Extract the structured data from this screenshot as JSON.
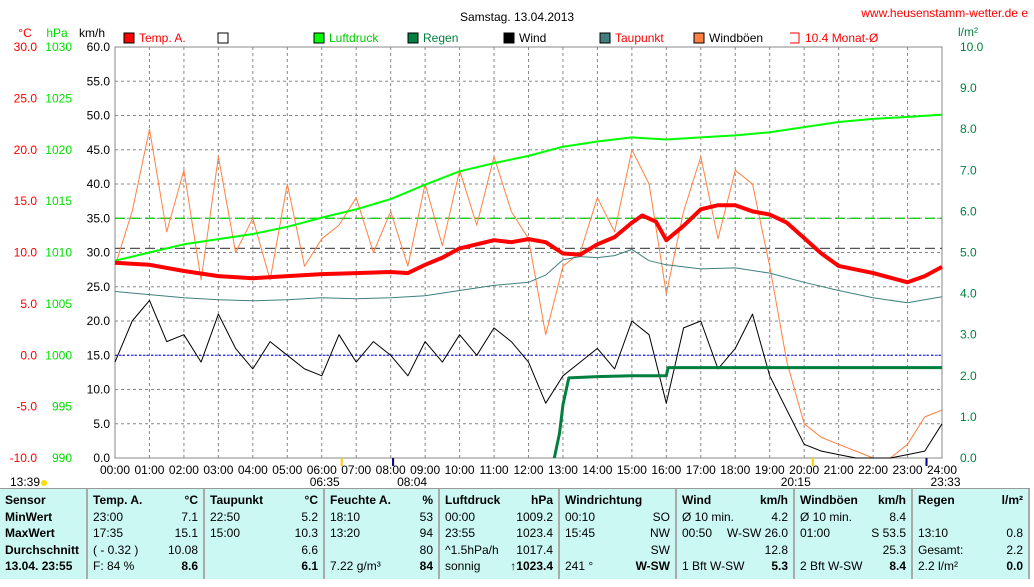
{
  "title": "Samstag. 13.04.2013",
  "website": "www.heusenstamm-wetter.de e",
  "units": {
    "temp": "°C",
    "pressure": "hPa",
    "wind": "km/h",
    "rain": "l/m²"
  },
  "legend": [
    {
      "label": "Temp. A.",
      "color": "#ff0000",
      "text_color": "#ff0000"
    },
    {
      "label": "",
      "color": "#ffffff",
      "text_color": "#000000"
    },
    {
      "label": "Luftdruck",
      "color": "#00ff00",
      "text_color": "#00cc00"
    },
    {
      "label": "Regen",
      "color": "#007f3f",
      "text_color": "#007f3f"
    },
    {
      "label": "Wind",
      "color": "#000000",
      "text_color": "#000000"
    },
    {
      "label": "Taupunkt",
      "color": "#3f7f7f",
      "text_color": "#ff0000"
    },
    {
      "label": "Windböen",
      "color": "#ff8040",
      "text_color": "#000000"
    },
    {
      "label": "10.4 Monat-Ø",
      "color": "none",
      "text_color": "#ff0000"
    }
  ],
  "chart_data": {
    "type": "line",
    "x_ticks": [
      "00:00",
      "01:00",
      "02:00",
      "03:00",
      "04:00",
      "05:00",
      "06:00",
      "07:00",
      "08:00",
      "09:00",
      "10:00",
      "11:00",
      "12:00",
      "13:00",
      "14:00",
      "15:00",
      "16:00",
      "17:00",
      "18:00",
      "19:00",
      "20:00",
      "21:00",
      "22:00",
      "23:00",
      "24:00"
    ],
    "axes": {
      "temp": {
        "range": [
          -10,
          30
        ],
        "ticks": [
          "30.0",
          "25.0",
          "20.0",
          "15.0",
          "10.0",
          "5.0",
          "0.0",
          "-5.0",
          "-10.0"
        ]
      },
      "pressure": {
        "range": [
          990,
          1030
        ],
        "ticks": [
          "1030",
          "1025",
          "1020",
          "1015",
          "1010",
          "1005",
          "1000",
          "995",
          "990"
        ]
      },
      "wind": {
        "range": [
          0,
          60
        ],
        "ticks": [
          "60.0",
          "55.0",
          "50.0",
          "45.0",
          "40.0",
          "35.0",
          "30.0",
          "25.0",
          "20.0",
          "15.0",
          "10.0",
          "5.0",
          "0.0"
        ]
      },
      "rain": {
        "range": [
          0,
          10
        ],
        "ticks": [
          "10.0",
          "9.0",
          "8.0",
          "7.0",
          "6.0",
          "5.0",
          "4.0",
          "3.0",
          "2.0",
          "1.0",
          "0.0"
        ]
      }
    },
    "grid": true,
    "series": [
      {
        "name": "Temp. A.",
        "axis": "temp",
        "color": "#ff0000",
        "x": [
          0,
          1,
          2,
          3,
          4,
          5,
          6,
          7,
          8,
          8.5,
          9,
          9.5,
          10,
          11,
          11.5,
          12,
          12.5,
          13,
          13.5,
          14,
          14.5,
          15,
          15.3,
          15.7,
          16,
          16.5,
          17,
          17.5,
          18,
          18.5,
          19,
          19.5,
          20,
          20.5,
          21,
          22,
          23,
          23.5,
          24
        ],
        "y": [
          9,
          8.8,
          8.2,
          7.7,
          7.5,
          7.7,
          7.9,
          8,
          8.1,
          8,
          8.8,
          9.5,
          10.4,
          11.2,
          11,
          11.3,
          11,
          9.9,
          9.8,
          10.8,
          11.5,
          12.9,
          13.6,
          13,
          11.2,
          12.6,
          14.2,
          14.6,
          14.6,
          14,
          13.7,
          12.9,
          11.4,
          9.9,
          8.7,
          8,
          7.1,
          7.7,
          8.6
        ]
      },
      {
        "name": "Luftdruck",
        "axis": "pressure",
        "color": "#00ff00",
        "x": [
          0,
          1,
          2,
          3,
          4,
          5,
          6,
          7,
          8,
          9,
          10,
          11,
          12,
          13,
          14,
          15,
          16,
          17,
          18,
          19,
          20,
          21,
          22,
          23,
          24
        ],
        "y": [
          1009.2,
          1010,
          1010.8,
          1011.3,
          1011.8,
          1012.5,
          1013.4,
          1014.2,
          1015.2,
          1016.6,
          1017.9,
          1018.7,
          1019.4,
          1020.3,
          1020.8,
          1021.2,
          1021,
          1021.2,
          1021.4,
          1021.7,
          1022.2,
          1022.7,
          1023,
          1023.2,
          1023.4
        ]
      },
      {
        "name": "Taupunkt",
        "axis": "temp",
        "color": "#3f7f7f",
        "x": [
          0,
          1,
          2,
          3,
          4,
          5,
          6,
          7,
          8,
          9,
          10,
          11,
          12,
          12.5,
          13,
          13.5,
          14,
          14.5,
          15,
          15.5,
          16,
          17,
          18,
          19,
          20,
          21,
          22,
          23,
          24
        ],
        "y": [
          6.2,
          5.9,
          5.6,
          5.4,
          5.3,
          5.4,
          5.6,
          5.5,
          5.6,
          5.8,
          6.3,
          6.8,
          7.1,
          7.8,
          9.3,
          9.6,
          9.5,
          9.7,
          10.3,
          9.2,
          8.8,
          8.4,
          8.5,
          8,
          7.1,
          6.3,
          5.6,
          5.1,
          5.7
        ]
      },
      {
        "name": "Wind",
        "axis": "wind",
        "color": "#000000",
        "x": [
          0,
          0.5,
          1,
          1.5,
          2,
          2.5,
          3,
          3.5,
          4,
          4.5,
          5,
          5.5,
          6,
          6.5,
          7,
          7.5,
          8,
          8.5,
          9,
          9.5,
          10,
          10.5,
          11,
          11.5,
          12,
          12.5,
          13,
          13.5,
          14,
          14.5,
          15,
          15.5,
          16,
          16.5,
          17,
          17.5,
          18,
          18.5,
          19,
          19.5,
          20,
          20.5,
          21,
          21.5,
          22,
          22.5,
          23,
          23.5,
          24
        ],
        "y": [
          14,
          20,
          23,
          17,
          18,
          14,
          21,
          16,
          13,
          17,
          15,
          13,
          12,
          18,
          14,
          17,
          15,
          12,
          17,
          14,
          18,
          15,
          19,
          17,
          14,
          8,
          12,
          14,
          16,
          13,
          20,
          18,
          8,
          19,
          20,
          13,
          16,
          21,
          12,
          7,
          2,
          1,
          0.5,
          0,
          0,
          0,
          0.5,
          1,
          5
        ]
      },
      {
        "name": "Windböen",
        "axis": "wind",
        "color": "#ff8040",
        "x": [
          0,
          0.5,
          1,
          1.5,
          2,
          2.5,
          3,
          3.5,
          4,
          4.5,
          5,
          5.5,
          6,
          6.5,
          7,
          7.5,
          8,
          8.5,
          9,
          9.5,
          10,
          10.5,
          11,
          11.5,
          12,
          12.5,
          13,
          13.5,
          14,
          14.5,
          15,
          15.5,
          16,
          16.5,
          17,
          17.5,
          18,
          18.5,
          19,
          19.5,
          20,
          20.5,
          21,
          21.5,
          22,
          22.5,
          23,
          23.5,
          24
        ],
        "y": [
          28,
          36,
          48,
          33,
          42,
          26,
          44,
          30,
          35,
          26,
          40,
          28,
          32,
          34,
          38,
          30,
          36,
          28,
          40,
          31,
          42,
          34,
          44,
          36,
          32,
          18,
          28,
          30,
          38,
          33,
          45,
          40,
          24,
          36,
          44,
          32,
          42,
          40,
          28,
          14,
          5,
          3,
          2,
          1,
          0,
          0,
          2,
          6,
          7
        ]
      },
      {
        "name": "Regen",
        "axis": "rain",
        "color": "#007f3f",
        "x": [
          12.75,
          12.9,
          13,
          13.17,
          14,
          15,
          16,
          16.05,
          20,
          24
        ],
        "y": [
          0,
          0.6,
          1.3,
          1.95,
          1.98,
          2.0,
          2.0,
          2.2,
          2.2,
          2.2
        ]
      }
    ],
    "reference_lines": [
      {
        "axis": "wind",
        "value": 35,
        "color": "#00cc00",
        "style": "dashed"
      },
      {
        "axis": "temp",
        "value": 10.4,
        "color": "#555555",
        "style": "dashed",
        "label": "10.4 Monat-Ø"
      },
      {
        "axis": "temp",
        "value": 0,
        "color": "#0000ff",
        "style": "dotted"
      }
    ],
    "astro": [
      {
        "label": "13:39",
        "hour": -3,
        "icon": "moon-icon"
      },
      {
        "label": "06:35",
        "hour": 6.58,
        "icon": "sunrise-icon"
      },
      {
        "label": "08:04",
        "hour": 8.07,
        "icon": "moonrise-icon"
      },
      {
        "label": "20:15",
        "hour": 20.25,
        "icon": "sunset-icon"
      },
      {
        "label": "23:33",
        "hour": 23.55,
        "icon": "moonset-icon"
      }
    ]
  },
  "table": [
    {
      "h": [
        "Sensor",
        ""
      ],
      "rows": [
        [
          "MinWert",
          ""
        ],
        [
          "MaxWert",
          ""
        ],
        [
          "Durchschnitt",
          ""
        ],
        [
          "13.04. 23:55",
          ""
        ]
      ],
      "bold_first": true
    },
    {
      "h": [
        "Temp. A.",
        "°C"
      ],
      "rows": [
        [
          "23:00",
          "7.1"
        ],
        [
          "17:35",
          "15.1"
        ],
        [
          "( - 0.32 )",
          "10.08"
        ],
        [
          "F: 84 %",
          "8.6"
        ]
      ]
    },
    {
      "h": [
        "Taupunkt",
        "°C"
      ],
      "rows": [
        [
          "22:50",
          "5.2"
        ],
        [
          "15:00",
          "10.3"
        ],
        [
          "",
          "6.6"
        ],
        [
          "",
          "6.1"
        ]
      ]
    },
    {
      "h": [
        "Feuchte A.",
        "%"
      ],
      "rows": [
        [
          "18:10",
          "53"
        ],
        [
          "13:20",
          "94"
        ],
        [
          "",
          "80"
        ],
        [
          "7.22 g/m³",
          "84"
        ]
      ]
    },
    {
      "h": [
        "Luftdruck",
        "hPa"
      ],
      "rows": [
        [
          "00:00",
          "1009.2"
        ],
        [
          "23:55",
          "1023.4"
        ],
        [
          "^1.5hPa/h",
          "1017.4"
        ],
        [
          "sonnig",
          "↑1023.4"
        ]
      ]
    },
    {
      "h": [
        "Windrichtung",
        ""
      ],
      "rows": [
        [
          "00:10",
          "SO"
        ],
        [
          "15:45",
          "NW"
        ],
        [
          "",
          "SW"
        ],
        [
          "241 °",
          "W-SW"
        ]
      ]
    },
    {
      "h": [
        "Wind",
        "km/h"
      ],
      "rows": [
        [
          "Ø 10 min.",
          "4.2"
        ],
        [
          "00:50",
          "W-SW 26.0"
        ],
        [
          "",
          "12.8"
        ],
        [
          "1 Bft W-SW",
          "5.3"
        ]
      ]
    },
    {
      "h": [
        "Windböen",
        "km/h"
      ],
      "rows": [
        [
          "Ø 10 min.",
          "8.4"
        ],
        [
          "01:00",
          "S 53.5"
        ],
        [
          "",
          "25.3"
        ],
        [
          "2 Bft W-SW",
          "8.4"
        ]
      ]
    },
    {
      "h": [
        "Regen",
        "l/m²"
      ],
      "rows": [
        [
          "",
          ""
        ],
        [
          "13:10",
          "0.8"
        ],
        [
          "Gesamt:",
          "2.2"
        ],
        [
          "2.2 l/m²",
          "0.0"
        ]
      ]
    }
  ]
}
